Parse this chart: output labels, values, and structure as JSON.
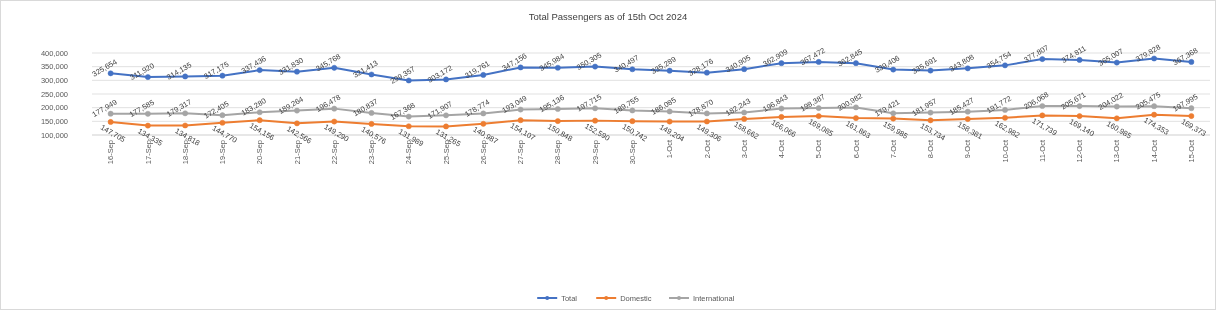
{
  "chart_data": {
    "type": "line",
    "title": "Total Passengers as of 15th Oct 2024",
    "categories": [
      "16-Sep",
      "17-Sep",
      "18-Sep",
      "19-Sep",
      "20-Sep",
      "21-Sep",
      "22-Sep",
      "23-Sep",
      "24-Sep",
      "25-Sep",
      "26-Sep",
      "27-Sep",
      "28-Sep",
      "29-Sep",
      "30-Sep",
      "1-Oct",
      "2-Oct",
      "3-Oct",
      "4-Oct",
      "5-Oct",
      "6-Oct",
      "7-Oct",
      "8-Oct",
      "9-Oct",
      "10-Oct",
      "11-Oct",
      "12-Oct",
      "13-Oct",
      "14-Oct",
      "15-Oct"
    ],
    "series": [
      {
        "name": "Total",
        "color": "#4472c4",
        "values": [
          325654,
          311920,
          314135,
          317175,
          337436,
          331830,
          345768,
          321413,
          299357,
          303172,
          319761,
          347156,
          345984,
          350305,
          340497,
          335289,
          328176,
          340905,
          362909,
          367472,
          362845,
          339406,
          335691,
          343808,
          354754,
          377807,
          374811,
          365007,
          379828,
          367368
        ],
        "value_labels": [
          "325,654",
          "311,920",
          "314,135",
          "317,175",
          "337,436",
          "331,830",
          "345,768",
          "321,413",
          "299,357",
          "303,172",
          "319,761",
          "347,156",
          "345,984",
          "350,305",
          "340,497",
          "335,289",
          "328,176",
          "340,905",
          "362,909",
          "367,472",
          "362,845",
          "339,406",
          "335,691",
          "343,808",
          "354,754",
          "377,807",
          "374,811",
          "365,007",
          "379,828",
          "367,368"
        ]
      },
      {
        "name": "Domestic",
        "color": "#ed7d31",
        "values": [
          147705,
          134335,
          134818,
          144770,
          154156,
          142566,
          149290,
          140576,
          131989,
          131265,
          140987,
          154107,
          150848,
          152590,
          150742,
          149204,
          149306,
          158662,
          166066,
          169085,
          161863,
          159985,
          153734,
          158381,
          162982,
          171739,
          169140,
          160985,
          174353,
          169373
        ],
        "value_labels": [
          "147,705",
          "134,335",
          "134,818",
          "144,770",
          "154,156",
          "142,566",
          "149,290",
          "140,576",
          "131,989",
          "131,265",
          "140,987",
          "154,107",
          "150,848",
          "152,590",
          "150,742",
          "149,204",
          "149,306",
          "158,662",
          "166,066",
          "169,085",
          "161,863",
          "159,985",
          "153,734",
          "158,381",
          "162,982",
          "171,739",
          "169,140",
          "160,985",
          "174,353",
          "169,373"
        ]
      },
      {
        "name": "International",
        "color": "#a5a5a5",
        "values": [
          177949,
          177585,
          179317,
          172405,
          183280,
          189264,
          196478,
          180837,
          167368,
          171907,
          178774,
          193049,
          195136,
          197715,
          189755,
          186085,
          178870,
          182243,
          196843,
          198387,
          200982,
          179421,
          181957,
          185427,
          191772,
          206068,
          205671,
          204022,
          205475,
          197995
        ],
        "value_labels": [
          "177,949",
          "177,585",
          "179,317",
          "172,405",
          "183,280",
          "189,264",
          "196,478",
          "180,837",
          "167,368",
          "171,907",
          "178,774",
          "193,049",
          "195,136",
          "197,715",
          "189,755",
          "186,085",
          "178,870",
          "182,243",
          "196,843",
          "198,387",
          "200,982",
          "179,421",
          "181,957",
          "185,427",
          "191,772",
          "206,068",
          "205,671",
          "204,022",
          "205,475",
          "197,995"
        ]
      }
    ],
    "ylim": [
      100000,
      400000
    ],
    "yticks": [
      {
        "value": 100000,
        "label": "100,000"
      },
      {
        "value": 150000,
        "label": "150,000"
      },
      {
        "value": 200000,
        "label": "200,000"
      },
      {
        "value": 250000,
        "label": "250,000"
      },
      {
        "value": 300000,
        "label": "300,000"
      },
      {
        "value": 350000,
        "label": "350,000"
      },
      {
        "value": 400000,
        "label": "400,000"
      }
    ],
    "grid": "y",
    "legend": "bottom",
    "marker": "circle",
    "line_style": "solid"
  }
}
